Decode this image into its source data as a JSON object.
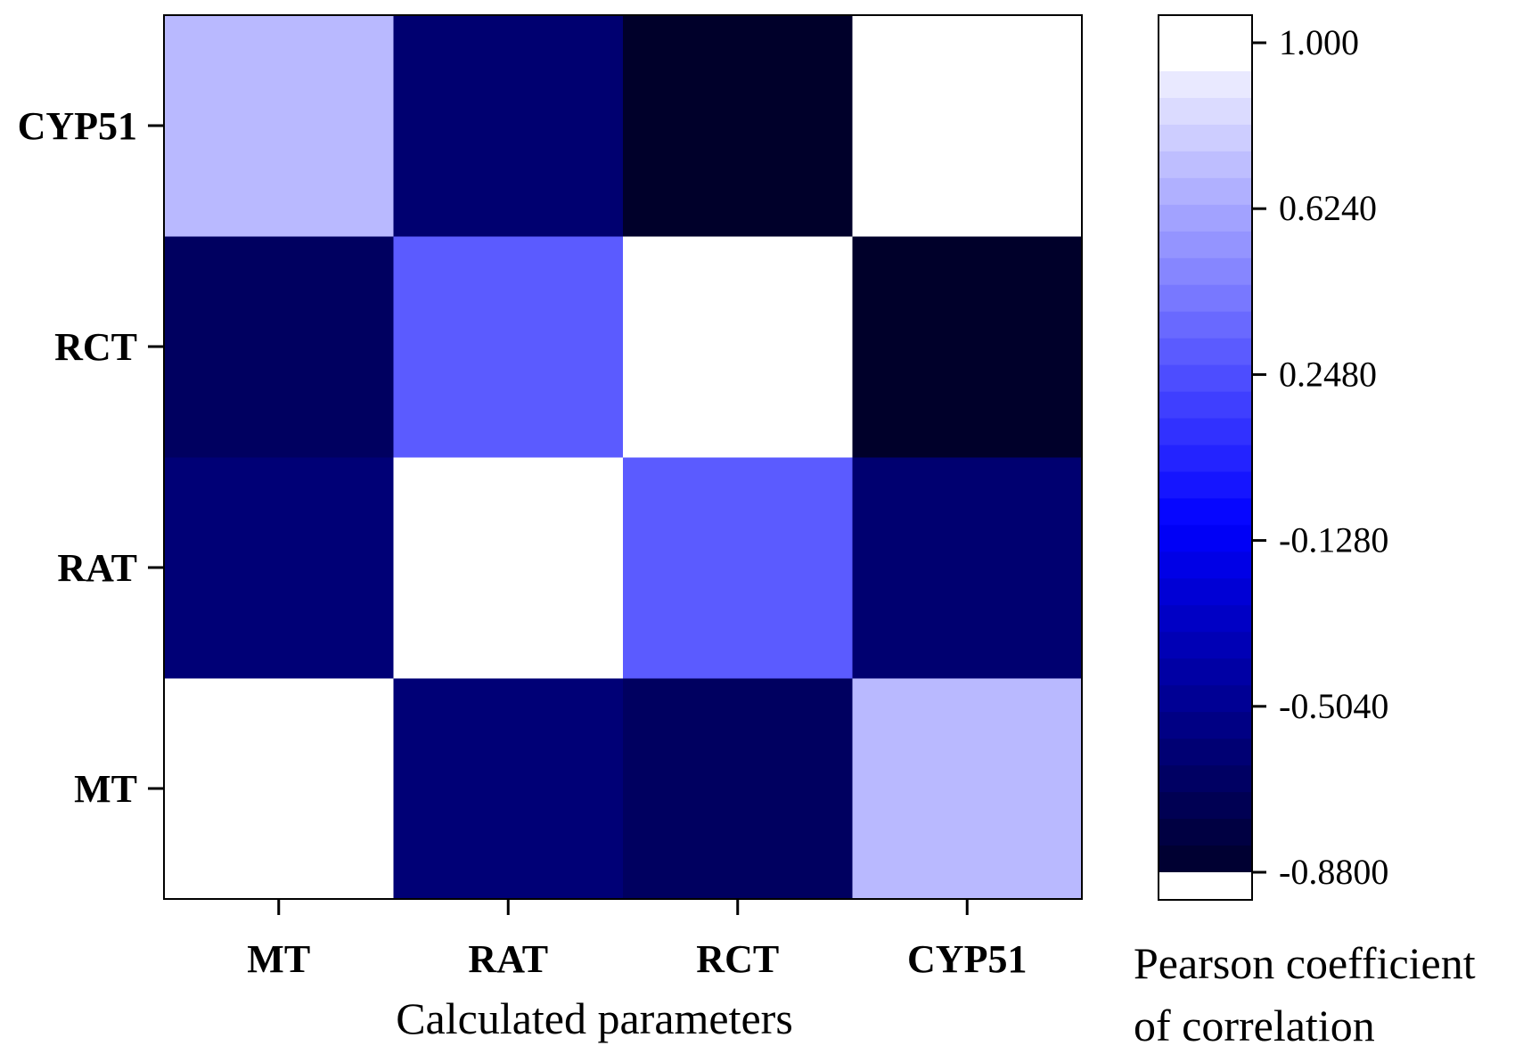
{
  "chart_data": {
    "type": "heatmap",
    "xlabel": "Calculated parameters",
    "x_categories": [
      "MT",
      "RAT",
      "RCT",
      "CYP51"
    ],
    "y_categories": [
      "MT",
      "RAT",
      "RCT",
      "CYP51"
    ],
    "matrix": [
      [
        1.0,
        -0.6,
        -0.68,
        0.7
      ],
      [
        -0.6,
        1.0,
        0.3,
        -0.62
      ],
      [
        -0.68,
        0.3,
        1.0,
        -0.88
      ],
      [
        0.7,
        -0.62,
        -0.88,
        1.0
      ]
    ],
    "colorbar": {
      "title_line1": "Pearson coefficient",
      "title_line2": "of correlation",
      "min": -0.88,
      "max": 1.0,
      "ticks": [
        1.0,
        0.624,
        0.248,
        -0.128,
        -0.504,
        -0.88
      ],
      "tick_labels": [
        "1.000",
        "0.6240",
        "0.2480",
        "-0.1280",
        "-0.5040",
        "-0.8800"
      ],
      "colors": {
        "low": "#00002a",
        "mid": "#0000ff",
        "high": "#ffffff"
      }
    }
  }
}
